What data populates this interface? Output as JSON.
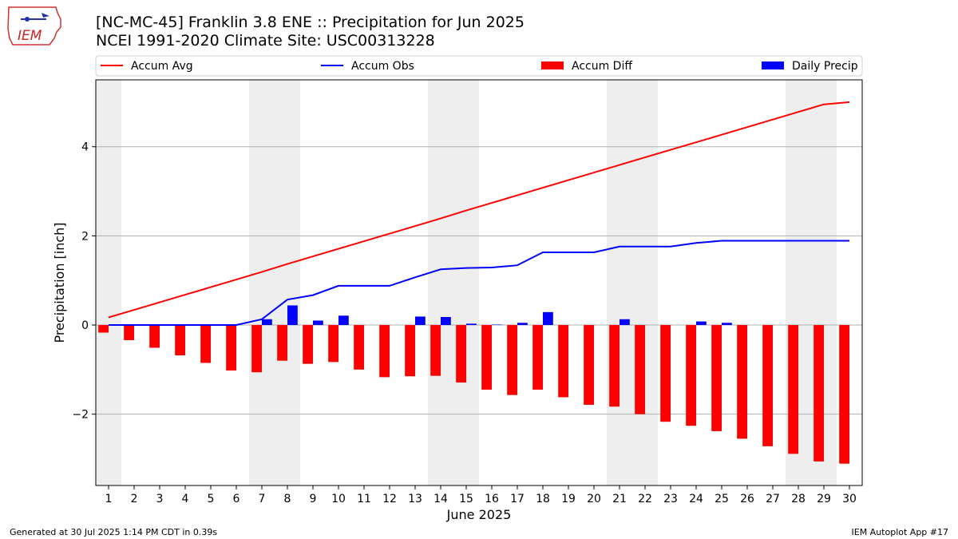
{
  "header": {
    "title": "[NC-MC-45] Franklin 3.8 ENE :: Precipitation for Jun 2025",
    "subtitle": "NCEI 1991-2020 Climate Site: USC00313228",
    "logo_text": "IEM"
  },
  "footer": {
    "generated": "Generated at 30 Jul 2025 1:14 PM CDT in 0.39s",
    "app": "IEM Autoplot App #17"
  },
  "colors": {
    "avg": "#ff0000",
    "obs": "#0000ff",
    "diff": "#ff0000",
    "daily": "#0000ff",
    "weekend_band": "#eeeeee",
    "grid": "#b0b0b0"
  },
  "chart_data": {
    "type": "bar",
    "title": "[NC-MC-45] Franklin 3.8 ENE :: Precipitation for Jun 2025",
    "xlabel": "June 2025",
    "ylabel": "Precipitation [inch]",
    "x": [
      1,
      2,
      3,
      4,
      5,
      6,
      7,
      8,
      9,
      10,
      11,
      12,
      13,
      14,
      15,
      16,
      17,
      18,
      19,
      20,
      21,
      22,
      23,
      24,
      25,
      26,
      27,
      28,
      29,
      30
    ],
    "xlim": [
      0.5,
      30.5
    ],
    "ylim": [
      -3.6,
      5.5
    ],
    "yticks": [
      -2,
      0,
      2,
      4
    ],
    "ytick_labels": [
      "−2",
      "0",
      "2",
      "4"
    ],
    "grid": "y",
    "legend_position": "top",
    "shaded_days": [
      1,
      7,
      8,
      14,
      15,
      21,
      22,
      28,
      29
    ],
    "series": [
      {
        "name": "Accum Avg",
        "type": "line",
        "values": [
          0.17,
          0.34,
          0.51,
          0.68,
          0.85,
          1.02,
          1.19,
          1.37,
          1.54,
          1.71,
          1.88,
          2.05,
          2.22,
          2.39,
          2.57,
          2.74,
          2.91,
          3.08,
          3.25,
          3.42,
          3.59,
          3.76,
          3.93,
          4.1,
          4.27,
          4.44,
          4.61,
          4.78,
          4.95,
          5.0
        ]
      },
      {
        "name": "Accum Obs",
        "type": "line",
        "values": [
          0,
          0,
          0,
          0,
          0,
          0,
          0.13,
          0.57,
          0.67,
          0.88,
          0.88,
          0.88,
          1.07,
          1.25,
          1.28,
          1.29,
          1.34,
          1.63,
          1.63,
          1.63,
          1.76,
          1.76,
          1.76,
          1.84,
          1.89,
          1.89,
          1.89,
          1.89,
          1.89,
          1.89
        ]
      },
      {
        "name": "Accum Diff",
        "type": "bar",
        "values": [
          -0.17,
          -0.34,
          -0.51,
          -0.68,
          -0.85,
          -1.02,
          -1.06,
          -0.8,
          -0.87,
          -0.83,
          -1.0,
          -1.17,
          -1.15,
          -1.14,
          -1.29,
          -1.45,
          -1.57,
          -1.45,
          -1.62,
          -1.79,
          -1.83,
          -2.0,
          -2.17,
          -2.26,
          -2.38,
          -2.55,
          -2.72,
          -2.89,
          -3.06,
          -3.11
        ]
      },
      {
        "name": "Daily Precip",
        "type": "bar",
        "values": [
          0,
          0,
          0,
          0,
          0,
          0,
          0.13,
          0.44,
          0.1,
          0.21,
          0,
          0,
          0.19,
          0.18,
          0.03,
          0.01,
          0.05,
          0.29,
          0,
          0,
          0.13,
          0,
          0,
          0.08,
          0.05,
          0,
          0,
          0,
          0,
          0
        ]
      }
    ]
  }
}
